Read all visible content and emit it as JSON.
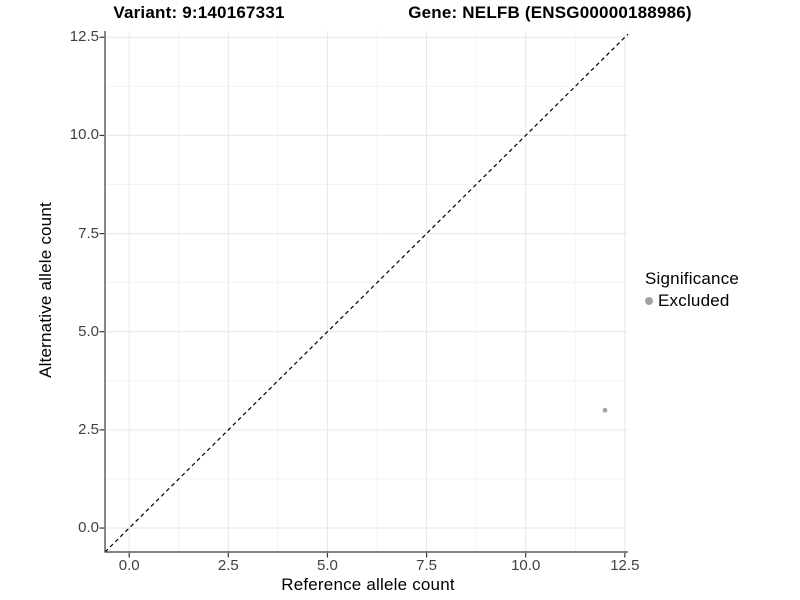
{
  "colors": {
    "background": "#ffffff",
    "grid_major": "#e7e7e7",
    "grid_minor": "#f3f3f3",
    "axis_line": "#383838",
    "tick_mark": "#383838",
    "tick_label": "#404040",
    "text": "#000000",
    "identity_line": "#000000",
    "point": "#a3a3a3"
  },
  "chart_data": {
    "type": "scatter",
    "title_left": "Variant: 9:140167331",
    "title_right": "Gene: NELFB (ENSG00000188986)",
    "xlabel": "Reference allele count",
    "ylabel": "Alternative allele count",
    "xlim": [
      -0.61,
      12.58
    ],
    "ylim": [
      -0.61,
      12.66
    ],
    "x_ticks": [
      0,
      2.5,
      5,
      7.5,
      10,
      12.5
    ],
    "x_tick_labels": [
      "0.0",
      "2.5",
      "5.0",
      "7.5",
      "10.0",
      "12.5"
    ],
    "y_ticks": [
      0,
      2.5,
      5,
      7.5,
      10,
      12.5
    ],
    "y_tick_labels": [
      "0.0",
      "2.5",
      "5.0",
      "7.5",
      "10.0",
      "12.5"
    ],
    "x_minor_ticks": [
      1.25,
      3.75,
      6.25,
      8.75,
      11.25
    ],
    "y_minor_ticks": [
      1.25,
      3.75,
      6.25,
      8.75,
      11.25
    ],
    "grid": {
      "major": true,
      "minor": true
    },
    "points": [
      {
        "x": 12,
        "y": 3,
        "significance": "Excluded"
      }
    ],
    "identity_line": {
      "slope": 1,
      "intercept": 0,
      "style": "dashed"
    },
    "legend": {
      "title": "Significance",
      "position": "right",
      "items": [
        {
          "label": "Excluded",
          "color": "#a3a3a3"
        }
      ]
    }
  }
}
